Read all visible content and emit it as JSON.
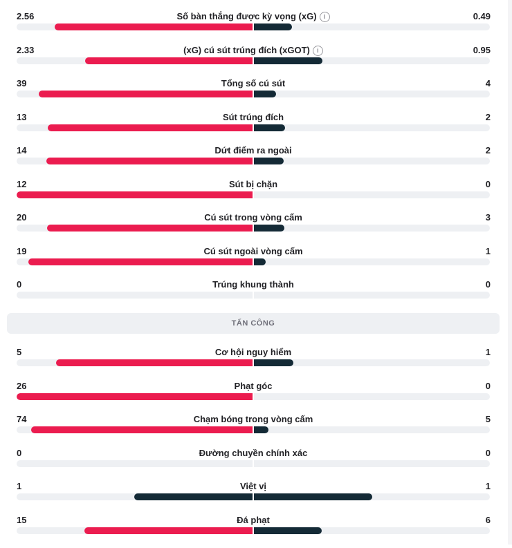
{
  "section_title": "TẤN CÔNG",
  "colors": {
    "home": "#eb1c4f",
    "away": "#142a36",
    "track": "#eef0f3"
  },
  "groups": [
    {
      "rows": [
        {
          "label": "Số bàn thắng được kỳ vọng (xG)",
          "home": "2.56",
          "away": "0.49",
          "home_share": 0.839,
          "away_share": 0.161,
          "info": true
        },
        {
          "label": "(xG) cú sút trúng đích (xGOT)",
          "home": "2.33",
          "away": "0.95",
          "home_share": 0.71,
          "away_share": 0.29,
          "info": true
        },
        {
          "label": "Tổng số cú sút",
          "home": "39",
          "away": "4",
          "home_share": 0.907,
          "away_share": 0.093
        },
        {
          "label": "Sút trúng đích",
          "home": "13",
          "away": "2",
          "home_share": 0.867,
          "away_share": 0.133
        },
        {
          "label": "Dứt điểm ra ngoài",
          "home": "14",
          "away": "2",
          "home_share": 0.875,
          "away_share": 0.125
        },
        {
          "label": "Sút bị chặn",
          "home": "12",
          "away": "0",
          "home_share": 1.0,
          "away_share": 0.0
        },
        {
          "label": "Cú sút trong vòng cấm",
          "home": "20",
          "away": "3",
          "home_share": 0.87,
          "away_share": 0.13
        },
        {
          "label": "Cú sút ngoài vòng cấm",
          "home": "19",
          "away": "1",
          "home_share": 0.95,
          "away_share": 0.05
        },
        {
          "label": "Trúng khung thành",
          "home": "0",
          "away": "0",
          "home_share": 0.0,
          "away_share": 0.0
        }
      ]
    },
    {
      "rows": [
        {
          "label": "Cơ hội nguy hiểm",
          "home": "5",
          "away": "1",
          "home_share": 0.833,
          "away_share": 0.167
        },
        {
          "label": "Phạt góc",
          "home": "26",
          "away": "0",
          "home_share": 1.0,
          "away_share": 0.0
        },
        {
          "label": "Chạm bóng trong vòng cấm",
          "home": "74",
          "away": "5",
          "home_share": 0.937,
          "away_share": 0.063
        },
        {
          "label": "Đường chuyền chính xác",
          "home": "0",
          "away": "0",
          "home_share": 0.0,
          "away_share": 0.0
        },
        {
          "label": "Việt vị",
          "home": "1",
          "away": "1",
          "home_share": 0.5,
          "away_share": 0.5,
          "home_color": "#142a36"
        },
        {
          "label": "Đá phạt",
          "home": "15",
          "away": "6",
          "home_share": 0.714,
          "away_share": 0.286
        }
      ]
    }
  ]
}
